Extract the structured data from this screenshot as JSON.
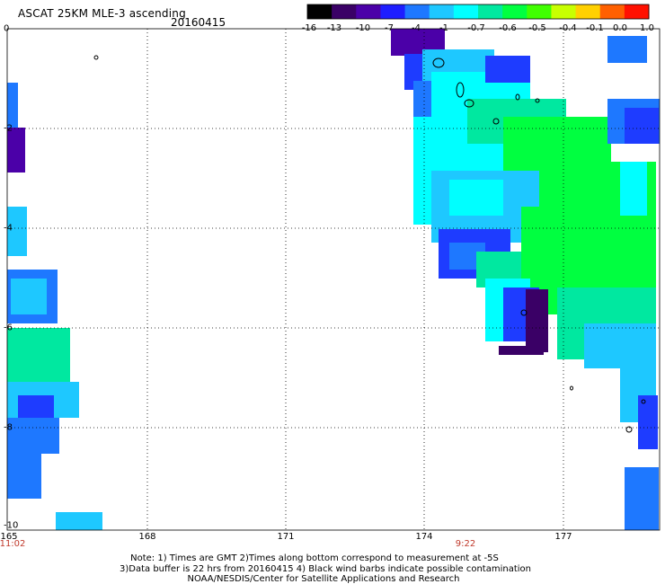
{
  "header": {
    "title": "ASCAT 25KM MLE-3 ascending",
    "date": "20160415"
  },
  "colorbar": {
    "labels": [
      "-16",
      "-13",
      "-10",
      "-7",
      "-4",
      "-1",
      "-0.7",
      "-0.6",
      "-0.5",
      "-0.4",
      "-0.1",
      "0.0",
      "1.0"
    ],
    "colors": [
      "#000000",
      "#3a0066",
      "#4b00a8",
      "#1e1eff",
      "#1e78ff",
      "#1ec8ff",
      "#00ffff",
      "#00e8a0",
      "#00ff40",
      "#40ff00",
      "#c8ff00",
      "#ffd000",
      "#ff6000",
      "#ff1000"
    ]
  },
  "axes": {
    "lat_labels": [
      "0",
      "-2",
      "-4",
      "-6",
      "-8",
      "-10"
    ],
    "lon_labels": [
      "165",
      "168",
      "171",
      "174",
      "177"
    ]
  },
  "time_labels": [
    "11:02",
    "9:22"
  ],
  "footnote": {
    "line1": "Note: 1) Times are GMT 2)Times along bottom correspond to measurement at -5S",
    "line2": "3)Data buffer is 22 hrs from 20160415 4) Black wind barbs indicate possible contamination",
    "line3": "NOAA/NESDIS/Center for Satellite Applications and Research"
  },
  "map_colors": {
    "deep_purple": "#3a0066",
    "purple": "#4b00a8",
    "blue": "#1e3cff",
    "mid_blue": "#1e78ff",
    "sky": "#1ec8ff",
    "cyan": "#00ffff",
    "aqua_green": "#00e8a0",
    "green": "#00ff40"
  }
}
